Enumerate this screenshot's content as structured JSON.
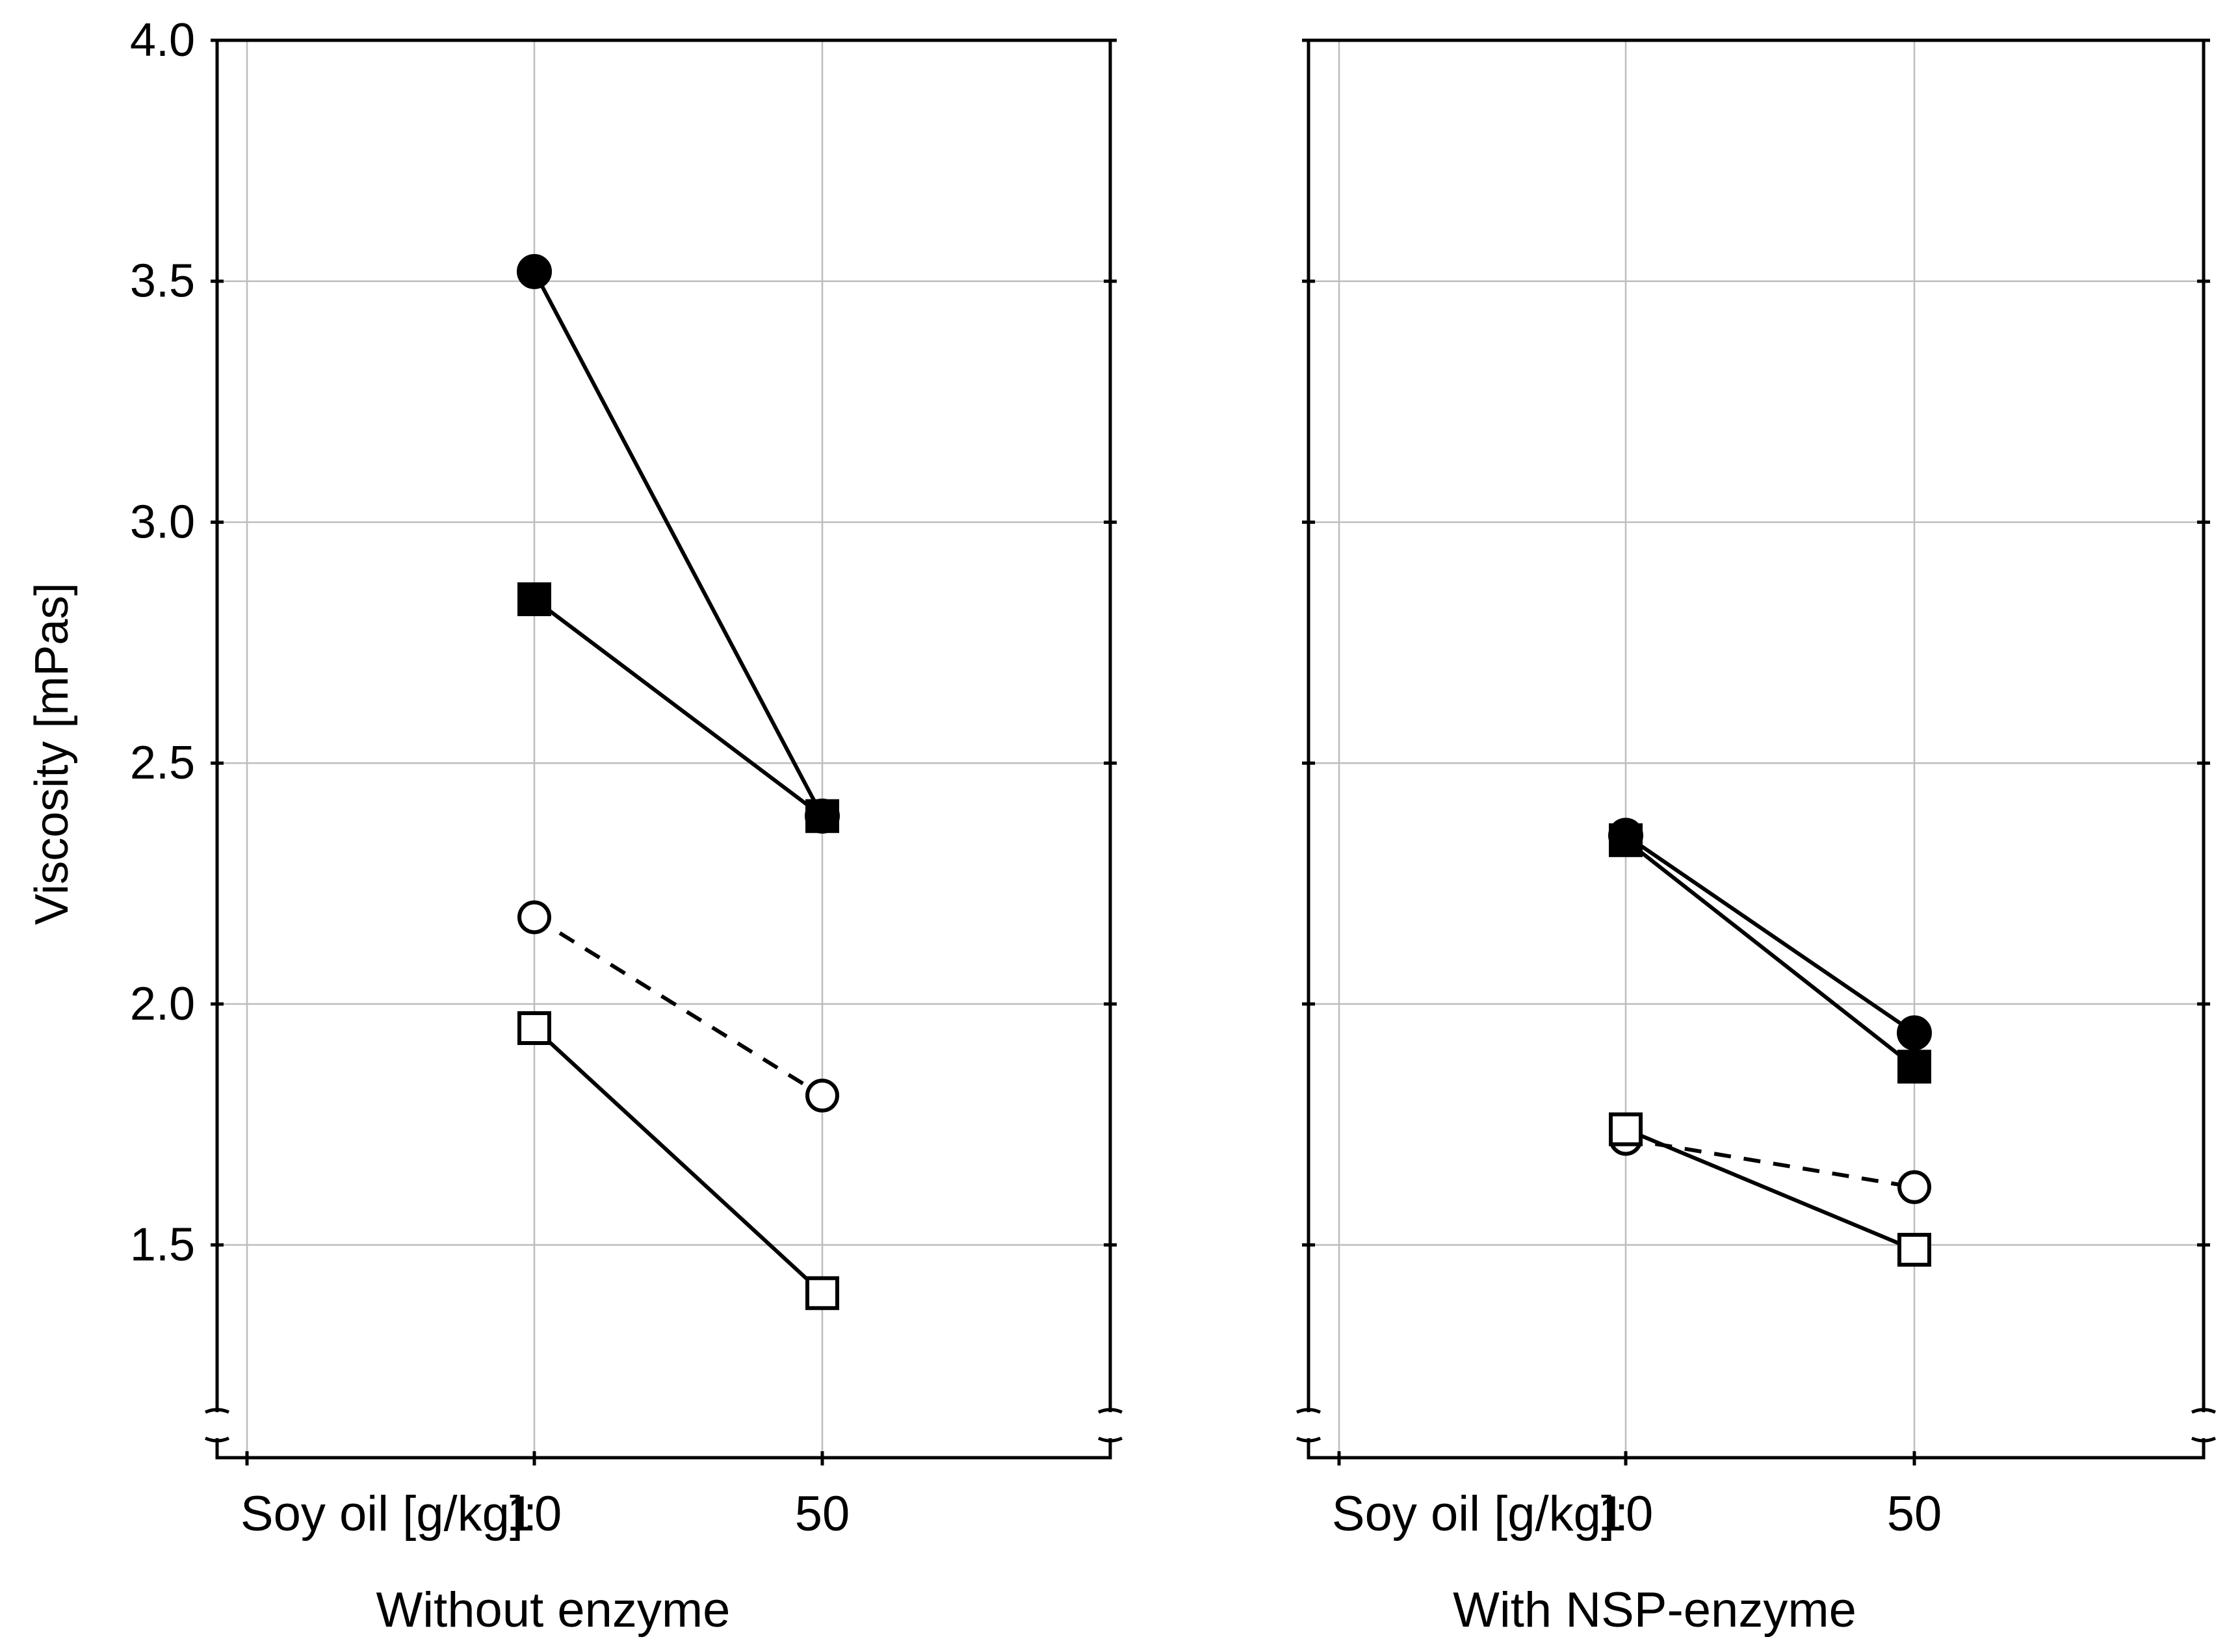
{
  "chart_data": [
    {
      "type": "line",
      "panel_caption": "Without enzyme",
      "ylabel": "Viscosity [mPas]",
      "x_title": "Soy oil [g/kg]:",
      "categories": [
        "10",
        "50"
      ],
      "ylim": [
        1.13,
        4.0
      ],
      "yticks": [
        "1.5",
        "2.0",
        "2.5",
        "3.0",
        "3.5",
        "4.0"
      ],
      "grid": true,
      "series": [
        {
          "name": "filled circle, solid",
          "marker": "circle",
          "filled": true,
          "dashed": false,
          "values": [
            3.52,
            2.39
          ]
        },
        {
          "name": "filled square, solid",
          "marker": "square",
          "filled": true,
          "dashed": false,
          "values": [
            2.84,
            2.39
          ]
        },
        {
          "name": "open circle, dashed",
          "marker": "circle",
          "filled": false,
          "dashed": true,
          "values": [
            2.18,
            1.81
          ]
        },
        {
          "name": "open square, solid",
          "marker": "square",
          "filled": false,
          "dashed": false,
          "values": [
            1.95,
            1.4
          ]
        }
      ]
    },
    {
      "type": "line",
      "panel_caption": "With NSP-enzyme",
      "ylabel": "",
      "x_title": "Soy oil [g/kg]:",
      "categories": [
        "10",
        "50"
      ],
      "ylim": [
        1.13,
        4.0
      ],
      "yticks": [],
      "grid": true,
      "series": [
        {
          "name": "filled circle, solid",
          "marker": "circle",
          "filled": true,
          "dashed": false,
          "values": [
            2.35,
            1.94
          ]
        },
        {
          "name": "filled square, solid",
          "marker": "square",
          "filled": true,
          "dashed": false,
          "values": [
            2.34,
            1.87
          ]
        },
        {
          "name": "open circle, dashed",
          "marker": "circle",
          "filled": false,
          "dashed": true,
          "values": [
            1.72,
            1.62
          ]
        },
        {
          "name": "open square, solid",
          "marker": "square",
          "filled": false,
          "dashed": false,
          "values": [
            1.74,
            1.49
          ]
        }
      ]
    }
  ]
}
